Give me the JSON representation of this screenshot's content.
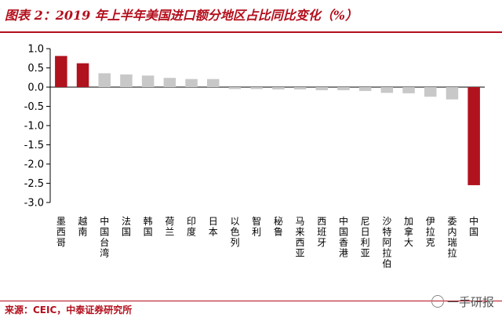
{
  "header": {
    "title": "图表 2：2019 年上半年美国进口额分地区占比同比变化（%）"
  },
  "footer": {
    "source": "来源：CEIC，中泰证券研究所",
    "watermark": "一手研报"
  },
  "colors": {
    "highlight": "#B0121E",
    "neutral": "#C8C8C8",
    "axis": "#000000"
  },
  "chart_data": {
    "type": "bar",
    "title": "图表 2：2019 年上半年美国进口额分地区占比同比变化（%）",
    "xlabel": "",
    "ylabel": "",
    "ylim": [
      -3.0,
      1.0
    ],
    "yticks": [
      "1.0",
      "0.5",
      "0.0",
      "-0.5",
      "-1.0",
      "-1.5",
      "-2.0",
      "-2.5",
      "-3.0"
    ],
    "grid": false,
    "legend": "none",
    "categories": [
      "墨西哥",
      "越南",
      "中国台湾",
      "法国",
      "韩国",
      "荷兰",
      "印度",
      "日本",
      "以色列",
      "智利",
      "秘鲁",
      "马来西亚",
      "西班牙",
      "中国香港",
      "尼日利亚",
      "沙特阿拉伯",
      "加拿大",
      "伊拉克",
      "委内瑞拉",
      "中国"
    ],
    "values": [
      0.81,
      0.62,
      0.36,
      0.33,
      0.3,
      0.24,
      0.21,
      0.21,
      -0.05,
      -0.05,
      -0.06,
      -0.06,
      -0.08,
      -0.08,
      -0.1,
      -0.15,
      -0.16,
      -0.25,
      -0.32,
      -2.55
    ],
    "highlight": [
      "墨西哥",
      "越南",
      "中国"
    ]
  }
}
